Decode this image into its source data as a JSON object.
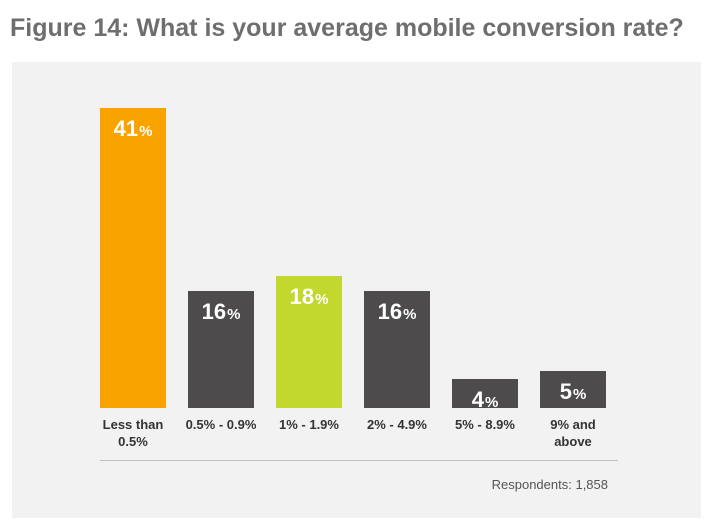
{
  "title": "Figure 14: What is your average mobile conversion rate?",
  "footnote": "Respondents: 1,858",
  "colors": {
    "orange": "#f9a300",
    "green": "#c2d82e",
    "gray": "#4d4b4c",
    "panel": "#f2f2f2"
  },
  "chart_data": {
    "type": "bar",
    "title": "Figure 14: What is your average mobile conversion rate?",
    "xlabel": "",
    "ylabel": "",
    "unit": "%",
    "ylim": [
      0,
      41
    ],
    "grid": false,
    "categories": [
      "Less than 0.5%",
      "0.5% - 0.9%",
      "1% - 1.9%",
      "2% - 4.9%",
      "5% - 8.9%",
      "9% and above"
    ],
    "label_lines": [
      [
        "Less than",
        "0.5%"
      ],
      [
        "0.5% - 0.9%"
      ],
      [
        "1% - 1.9%"
      ],
      [
        "2% - 4.9%"
      ],
      [
        "5% - 8.9%"
      ],
      [
        "9% and",
        "above"
      ]
    ],
    "values": [
      41,
      16,
      18,
      16,
      4,
      5
    ],
    "bar_colors": [
      "#f9a300",
      "#4d4b4c",
      "#c2d82e",
      "#4d4b4c",
      "#4d4b4c",
      "#4d4b4c"
    ]
  }
}
